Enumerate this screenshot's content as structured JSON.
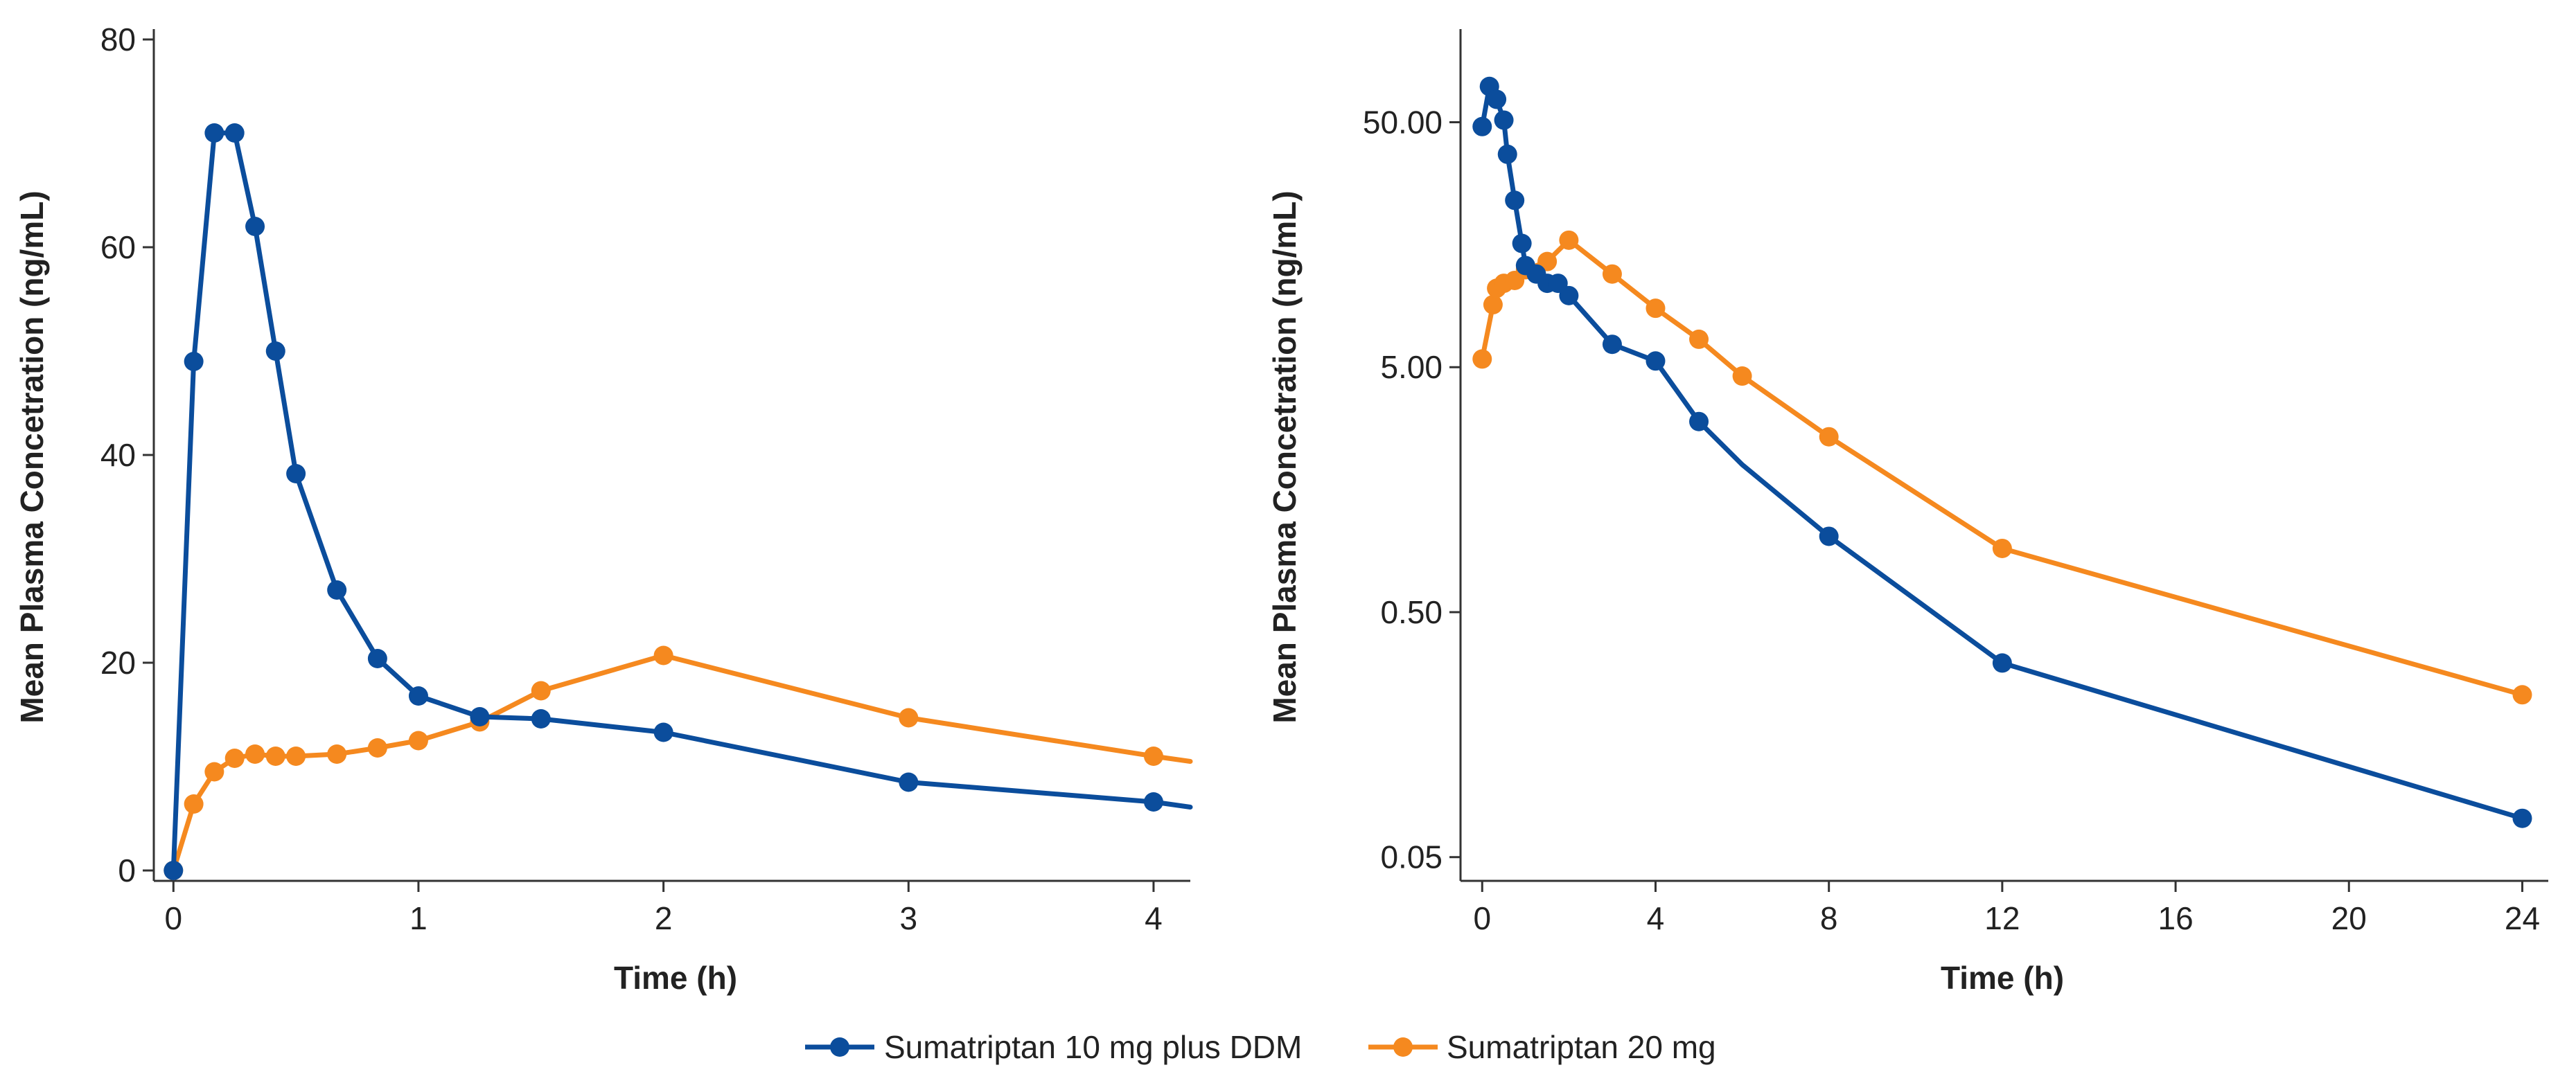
{
  "colors": {
    "series_a": "#0b4d9c",
    "series_b": "#f5891f",
    "axis": "#333333"
  },
  "legend": {
    "items": [
      {
        "label": "Sumatriptan 10 mg plus DDM"
      },
      {
        "label": "Sumatriptan 20 mg"
      }
    ]
  },
  "chart_data": [
    {
      "type": "line",
      "title": "",
      "xlabel": "Time (h)",
      "ylabel": "Mean Plasma Concetration (ng/mL)",
      "xlim": [
        -0.08,
        4.15
      ],
      "ylim": [
        -1,
        81
      ],
      "yscale": "linear",
      "xticks": [
        0,
        1,
        2,
        3,
        4
      ],
      "xtick_labels": [
        "0",
        "1",
        "2",
        "3",
        "4"
      ],
      "yticks": [
        0,
        20,
        40,
        60,
        80
      ],
      "ytick_labels": [
        "0",
        "20",
        "40",
        "60",
        "80"
      ],
      "grid": false,
      "series": [
        {
          "name": "Sumatriptan 10 mg plus DDM",
          "x": [
            0,
            0.083,
            0.167,
            0.25,
            0.333,
            0.417,
            0.5,
            0.667,
            0.833,
            1.0,
            1.25,
            1.5,
            2,
            3,
            4,
            4.15
          ],
          "y": [
            0,
            49,
            71,
            71,
            62,
            50,
            38.2,
            27,
            20.4,
            16.8,
            14.8,
            14.6,
            13.3,
            8.5,
            6.6,
            6.1
          ],
          "markers": [
            true,
            true,
            true,
            true,
            true,
            true,
            true,
            true,
            true,
            true,
            true,
            true,
            true,
            true,
            true,
            false
          ]
        },
        {
          "name": "Sumatriptan 20 mg",
          "x": [
            0,
            0.083,
            0.167,
            0.25,
            0.333,
            0.417,
            0.5,
            0.667,
            0.833,
            1.0,
            1.25,
            1.5,
            2,
            3,
            4,
            4.15
          ],
          "y": [
            0,
            6.4,
            9.5,
            10.8,
            11.2,
            11.0,
            11.0,
            11.2,
            11.8,
            12.5,
            14.3,
            17.3,
            20.7,
            14.7,
            11.0,
            10.5
          ],
          "markers": [
            true,
            true,
            true,
            true,
            true,
            true,
            true,
            true,
            true,
            true,
            true,
            true,
            true,
            true,
            true,
            false
          ]
        }
      ]
    },
    {
      "type": "line",
      "title": "",
      "xlabel": "Time (h)",
      "ylabel": "Mean Plasma Concetration (ng/mL)",
      "xlim": [
        -0.5,
        24.6
      ],
      "ylim": [
        0.04,
        120
      ],
      "yscale": "log",
      "xticks": [
        0,
        4,
        8,
        12,
        16,
        20,
        24
      ],
      "xtick_labels": [
        "0",
        "4",
        "8",
        "12",
        "16",
        "20",
        "24"
      ],
      "yticks": [
        0.05,
        0.5,
        5,
        50
      ],
      "ytick_labels": [
        "0.05",
        "0.50",
        "5.00",
        "50.00"
      ],
      "grid": false,
      "series": [
        {
          "name": "Sumatriptan 10 mg plus DDM",
          "x": [
            0,
            0.167,
            0.333,
            0.5,
            0.583,
            0.75,
            0.917,
            1.0,
            1.25,
            1.5,
            1.75,
            2,
            3,
            4,
            5,
            6,
            8,
            12,
            24
          ],
          "y": [
            48,
            70,
            62,
            51,
            37,
            24,
            16,
            13,
            12,
            11,
            11,
            9.8,
            6.2,
            5.3,
            3.0,
            2.0,
            1.02,
            0.31,
            0.072
          ],
          "markers": [
            true,
            true,
            true,
            true,
            true,
            true,
            true,
            true,
            true,
            true,
            true,
            true,
            true,
            true,
            true,
            false,
            true,
            true,
            true
          ]
        },
        {
          "name": "Sumatriptan 20 mg",
          "x": [
            0,
            0.25,
            0.333,
            0.5,
            0.75,
            1.0,
            1.5,
            2,
            3,
            4,
            5,
            6,
            8,
            12,
            24
          ],
          "y": [
            5.4,
            9.0,
            10.5,
            11.0,
            11.3,
            12.5,
            13.5,
            16.5,
            12,
            8.7,
            6.5,
            4.6,
            2.6,
            0.91,
            0.23
          ],
          "markers": [
            true,
            true,
            true,
            true,
            true,
            true,
            true,
            true,
            true,
            true,
            true,
            true,
            true,
            true,
            true
          ]
        }
      ]
    }
  ]
}
